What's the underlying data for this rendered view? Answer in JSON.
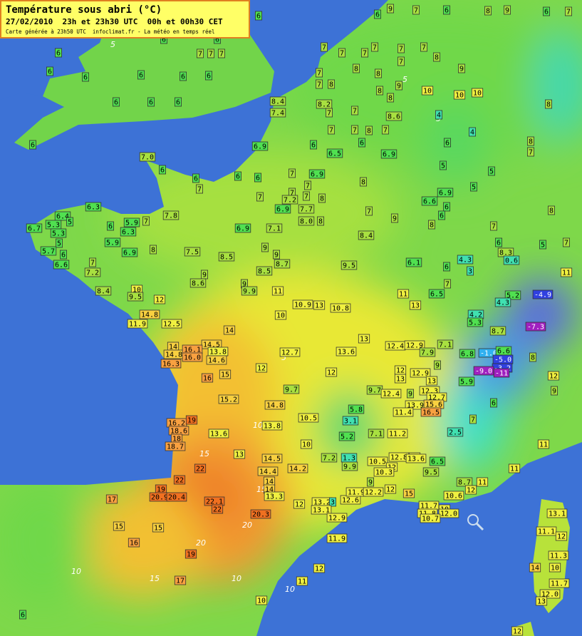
{
  "header": {
    "title": "Température sous abri (°C)",
    "subtitle": "27/02/2010  23h et 23h30 UTC  00h et 00h30 CET",
    "credit": "Carte générée à 23h50 UTC  infoclimat.fr - La météo en temps réel"
  },
  "contour_labels": [
    "5",
    "5",
    "5",
    "5",
    "10",
    "10",
    "15",
    "15",
    "20",
    "20",
    "10",
    "15",
    "10",
    "5"
  ],
  "stations": [
    "7",
    "6",
    "7",
    "7",
    "7",
    "6",
    "6",
    "6",
    "6",
    "6",
    "6",
    "6",
    "6",
    "6",
    "6",
    "6",
    "6",
    "8.4",
    "7.4",
    "7",
    "7",
    "8",
    "8.2",
    "7",
    "7",
    "7",
    "7",
    "8",
    "8",
    "8",
    "9",
    "8",
    "8.6",
    "7",
    "6.9",
    "6",
    "6.5",
    "6.9",
    "6",
    "9",
    "6",
    "7",
    "6",
    "8",
    "9",
    "6",
    "7",
    "7",
    "7",
    "7",
    "7",
    "7",
    "7",
    "8",
    "7",
    "8",
    "9",
    "10",
    "10",
    "10",
    "4",
    "4",
    "6",
    "8",
    "8",
    "7",
    "5",
    "5",
    "5",
    "7.0",
    "6",
    "6",
    "7",
    "6",
    "6",
    "7",
    "6.9",
    "7",
    "7",
    "7",
    "7",
    "7.2",
    "6.9",
    "7.7",
    "8.0",
    "8",
    "8",
    "8",
    "7",
    "9",
    "8",
    "6",
    "6.9",
    "6.6",
    "6",
    "8",
    "7",
    "6",
    "6.3",
    "6.4",
    "5.3",
    "6.7",
    "5",
    "6",
    "5.9",
    "6.3",
    "7",
    "7.8",
    "5.3",
    "5",
    "5.9",
    "5.7",
    "6",
    "6.6",
    "6.9",
    "8",
    "7",
    "7.2",
    "6.9",
    "7.1",
    "8.4",
    "7.5",
    "8.5",
    "9",
    "9",
    "8.7",
    "9.5",
    "6.1",
    "6",
    "4.3",
    "8.3",
    "0.6",
    "5",
    "7",
    "3",
    "8.4",
    "9",
    "8.6",
    "8.5",
    "9",
    "9.9",
    "11",
    "10",
    "9.5",
    "12",
    "14.8",
    "11.9",
    "12.5",
    "10.9",
    "13",
    "10.8",
    "10",
    "11",
    "6.5",
    "13",
    "7",
    "4.2",
    "5.3",
    "5.2",
    "4.3",
    "-4.9",
    "-7.3",
    "11",
    "14",
    "13",
    "14.5",
    "14",
    "14.8",
    "16.1",
    "16.0",
    "13.8",
    "14.6",
    "16.3",
    "12.7",
    "13.6",
    "12.4",
    "12.9",
    "7.9",
    "7.1",
    "6.8",
    "-1.0",
    "6.6",
    "-5.0",
    "-3.2",
    "-9.0",
    "-11",
    "8.7",
    "16",
    "15",
    "12",
    "12",
    "12",
    "13",
    "12.9",
    "13",
    "9",
    "5.9",
    "8",
    "12",
    "9",
    "6",
    "15.2",
    "9.7",
    "9.7",
    "12.4",
    "9",
    "12.3",
    "12.7",
    "13.9",
    "15.6",
    "16.5",
    "11.4",
    "5.8",
    "14.8",
    "16.2",
    "18.6",
    "18",
    "18.7",
    "19",
    "13.6",
    "13.8",
    "10.5",
    "3.1",
    "5.2",
    "7.1",
    "11.2",
    "2.5",
    "7",
    "10",
    "13",
    "14.5",
    "7.2",
    "1.3",
    "9.9",
    "10.5",
    "12.8",
    "12",
    "12",
    "10.3",
    "13.6",
    "6.5",
    "9.5",
    "14.4",
    "14.2",
    "14",
    "14",
    "13.3",
    "22",
    "22",
    "19",
    "20.9",
    "20.4",
    "17",
    "22.1",
    "22",
    "20.3",
    "12",
    "13.2",
    "3",
    "13.1",
    "12.6",
    "11.9",
    "12.2",
    "12",
    "15",
    "9",
    "8.7",
    "11",
    "12",
    "11",
    "10.6",
    "11.7",
    "11.8",
    "10",
    "12.0",
    "10.7",
    "11",
    "15",
    "15",
    "16",
    "19",
    "17",
    "12.9",
    "11.9",
    "12",
    "11",
    "10",
    "13.1",
    "11.1",
    "12",
    "11.3",
    "14",
    "10",
    "11.7",
    "12.0",
    "13",
    "12",
    "6"
  ]
}
